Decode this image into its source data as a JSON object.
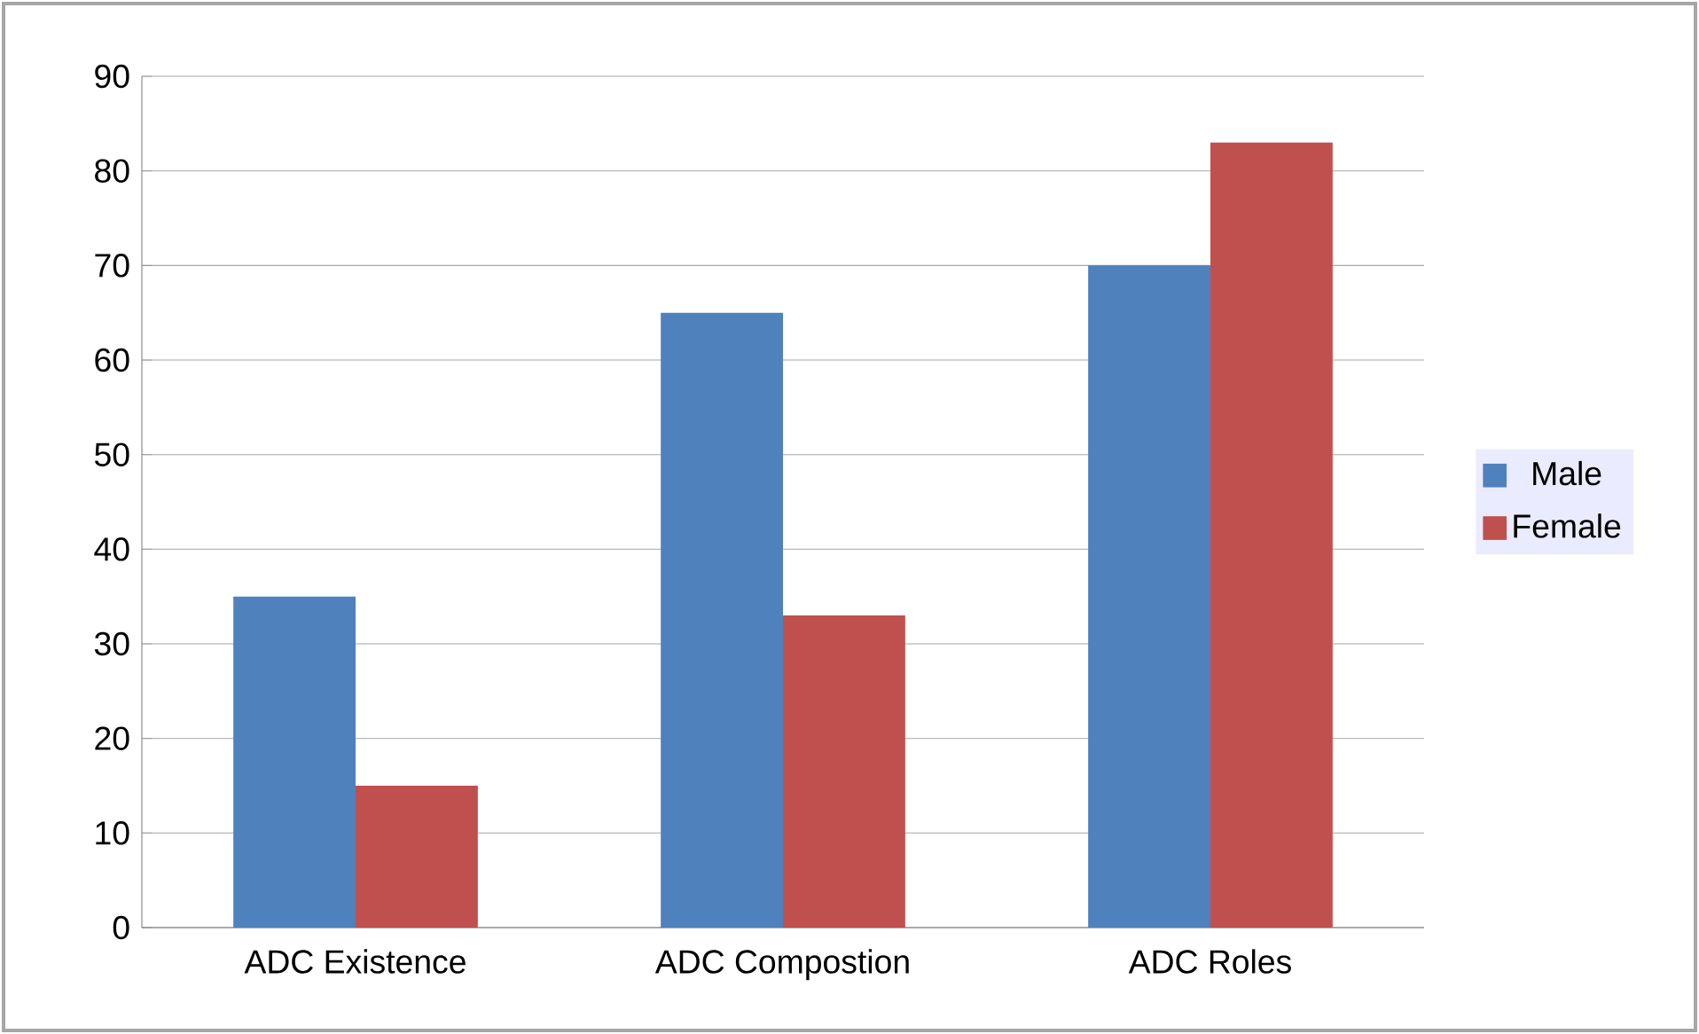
{
  "chart_data": {
    "type": "bar",
    "categories": [
      "ADC Existence",
      "ADC Compostion",
      "ADC Roles"
    ],
    "series": [
      {
        "name": "Male",
        "color": "#4f81bd",
        "values": [
          35,
          65,
          70
        ]
      },
      {
        "name": "Female",
        "color": "#c0504d",
        "values": [
          15,
          33,
          83
        ]
      }
    ],
    "ylim": [
      0,
      90
    ],
    "yticks": [
      0,
      10,
      20,
      30,
      40,
      50,
      60,
      70,
      80,
      90
    ],
    "grid": "y",
    "legend": "right"
  }
}
